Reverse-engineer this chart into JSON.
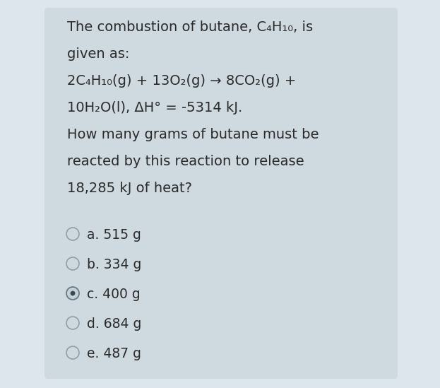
{
  "background_color": "#dde6ec",
  "card_color": "#cfd9e0",
  "text_color": "#2a2a2a",
  "font_size_main": 14.0,
  "font_size_options": 13.5,
  "lines": [
    "The combustion of butane, C₄H₁₀, is",
    "given as:",
    "2C₄H₁₀(g) + 13O₂(g) → 8CO₂(g) +",
    "10H₂O(l), ΔH° = -5314 kJ.",
    "How many grams of butane must be",
    "reacted by this reaction to release",
    "18,285 kJ of heat?"
  ],
  "options": [
    "a. 515 g",
    "b. 334 g",
    "c. 400 g",
    "d. 684 g",
    "e. 487 g"
  ],
  "selected_option": 2,
  "radio_fill_unselected": "#cdd8df",
  "radio_edge_unselected": "#8a9aa3",
  "radio_fill_selected": "#c5d2d9",
  "radio_edge_selected": "#6a7a82",
  "radio_dot_color": "#3a4a50"
}
